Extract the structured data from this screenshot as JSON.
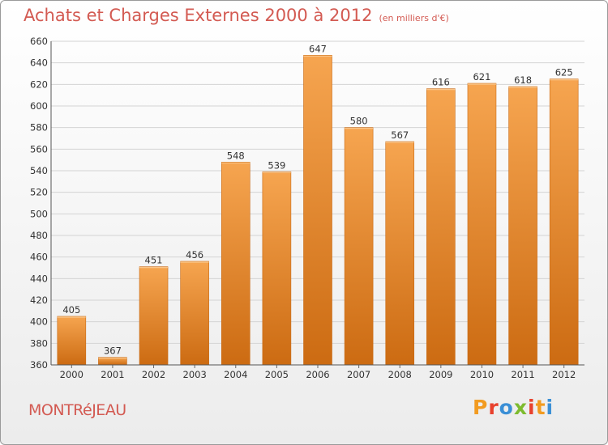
{
  "header": {
    "title": "Achats et Charges Externes 2000 à 2012",
    "subtitle": "(en milliers d'€)"
  },
  "footer": {
    "city": "MONTRéJEAU",
    "logo": "Proxiti"
  },
  "colors": {
    "bar_light": "#f6a550",
    "bar_dark": "#cc6b12",
    "title": "#d35a52",
    "logo_letters": [
      "#f29b20",
      "#e8412d",
      "#3a8fd6",
      "#7dbb2e",
      "#e8412d",
      "#f29b20",
      "#3a8fd6"
    ]
  },
  "chart_data": {
    "type": "bar",
    "title": "Achats et Charges Externes 2000 à 2012",
    "subtitle": "(en milliers d'€)",
    "categories": [
      "2000",
      "2001",
      "2002",
      "2003",
      "2004",
      "2005",
      "2006",
      "2007",
      "2008",
      "2009",
      "2010",
      "2011",
      "2012"
    ],
    "values": [
      405,
      367,
      451,
      456,
      548,
      539,
      647,
      580,
      567,
      616,
      621,
      618,
      625
    ],
    "ylim": [
      360,
      660
    ],
    "yticks": [
      360,
      380,
      400,
      420,
      440,
      460,
      480,
      500,
      520,
      540,
      560,
      580,
      600,
      620,
      640,
      660
    ],
    "grid": true,
    "data_labels": true
  }
}
